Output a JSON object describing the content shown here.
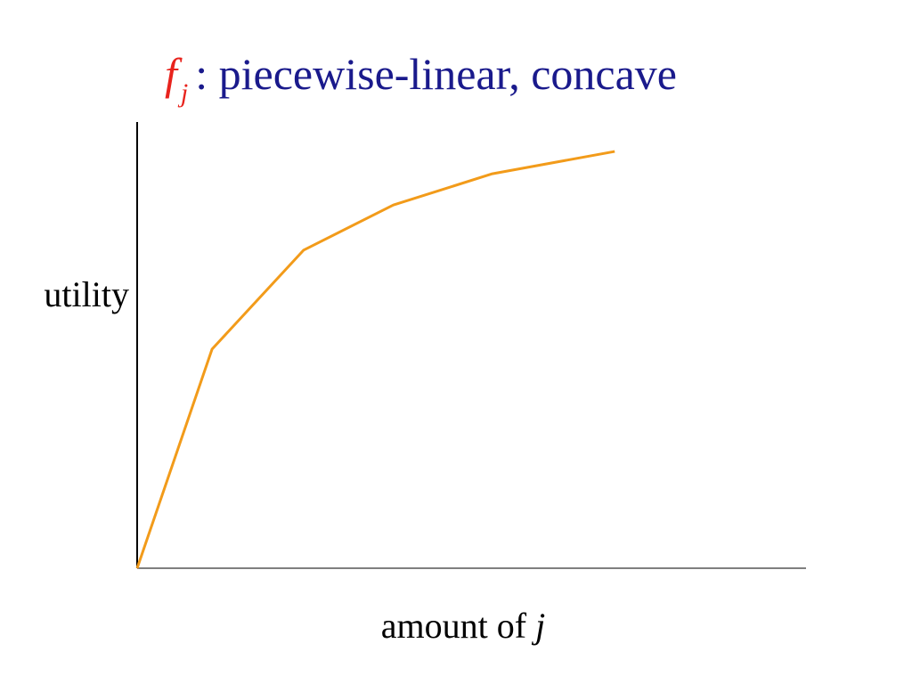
{
  "chart_data": {
    "type": "line",
    "title": {
      "symbol": "f",
      "subscript": "j",
      "text": ": piecewise-linear, concave"
    },
    "xlabel": {
      "text": "amount of",
      "symbol": "j"
    },
    "ylabel": "utility",
    "x": [
      0,
      11.2,
      24.9,
      38.3,
      53.1,
      71.4
    ],
    "values": [
      0,
      49.1,
      71.3,
      81.4,
      88.4,
      93.4
    ],
    "color": "#f29b1a",
    "xlim": [
      0,
      100
    ],
    "ylim": [
      0,
      100
    ],
    "grid": false
  }
}
